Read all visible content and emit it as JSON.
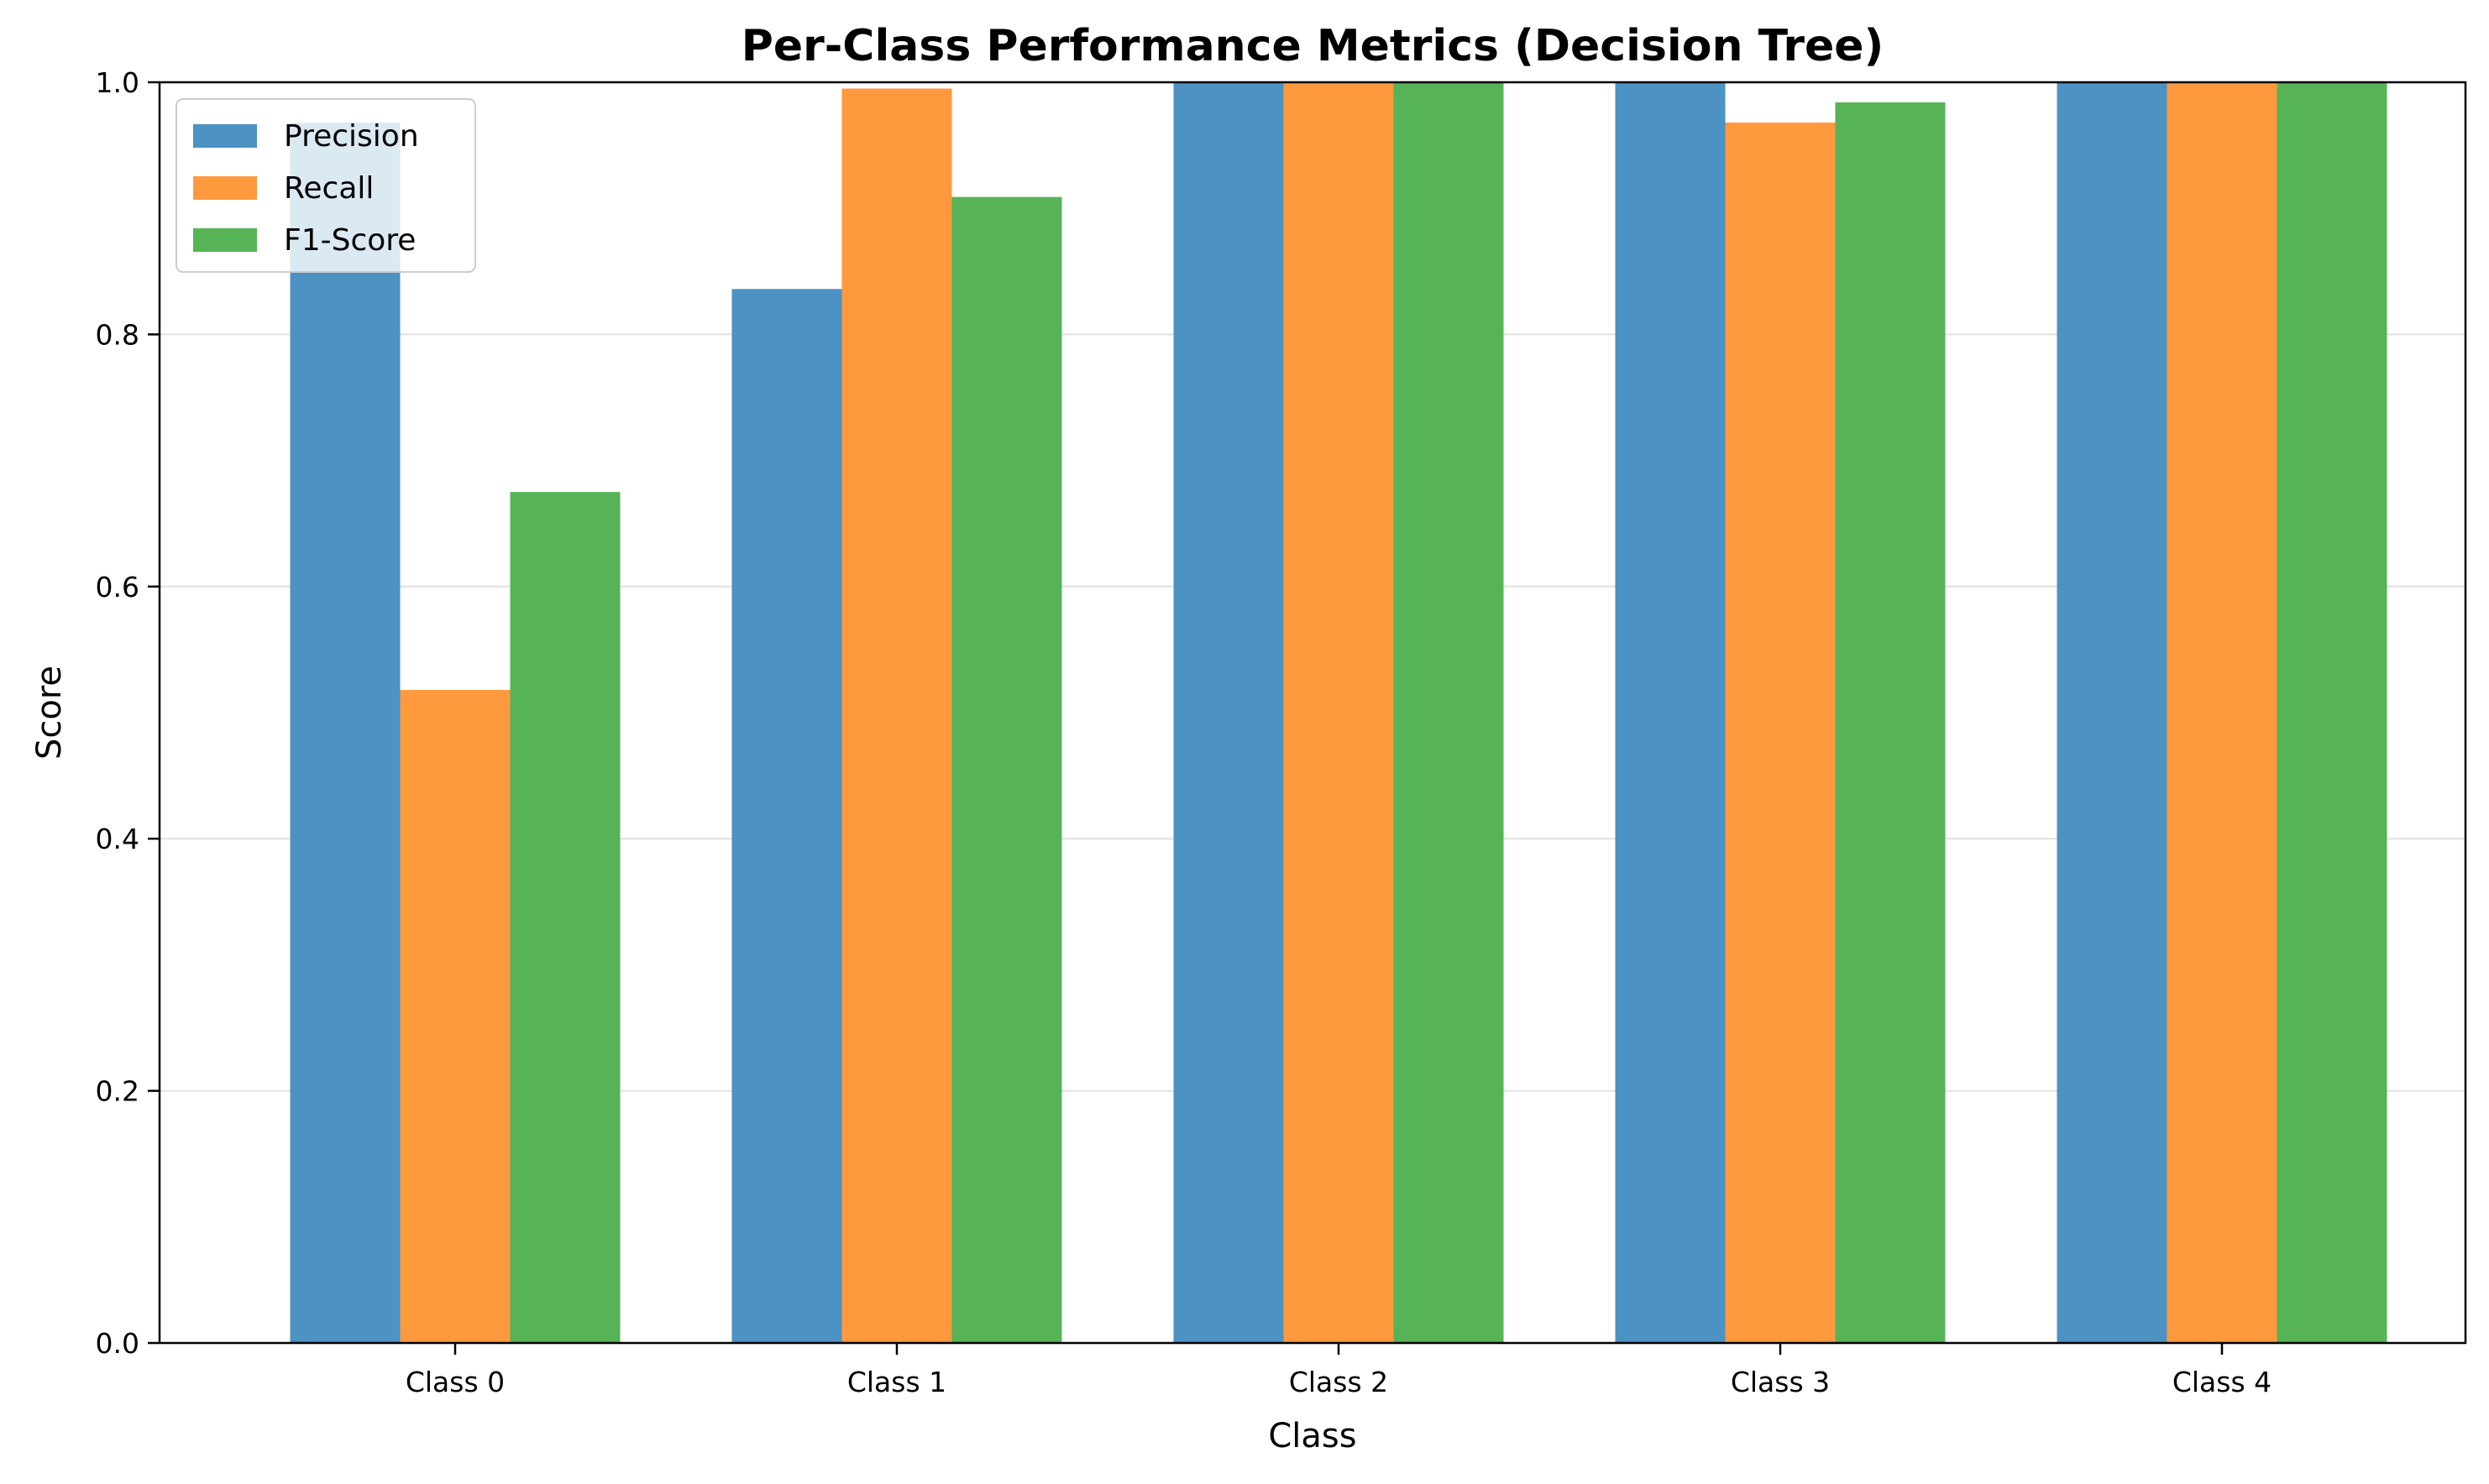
{
  "chart_data": {
    "type": "bar",
    "title": "Per-Class Performance Metrics (Decision Tree)",
    "xlabel": "Class",
    "ylabel": "Score",
    "categories": [
      "Class 0",
      "Class 1",
      "Class 2",
      "Class 3",
      "Class 4"
    ],
    "series": [
      {
        "name": "Precision",
        "color": "#4C92C3",
        "values": [
          0.968,
          0.836,
          1.0,
          1.0,
          1.0
        ]
      },
      {
        "name": "Recall",
        "color": "#FF993E",
        "values": [
          0.518,
          0.995,
          1.0,
          0.968,
          1.0
        ]
      },
      {
        "name": "F1-Score",
        "color": "#56B356",
        "values": [
          0.675,
          0.909,
          1.0,
          0.984,
          1.0
        ]
      }
    ],
    "ylim": [
      0,
      1.0
    ],
    "yticks": [
      0.0,
      0.2,
      0.4,
      0.6,
      0.8,
      1.0
    ],
    "ytick_labels": [
      "0.0",
      "0.2",
      "0.4",
      "0.6",
      "0.8",
      "1.0"
    ],
    "grid": "y",
    "legend_position": "top-left"
  }
}
